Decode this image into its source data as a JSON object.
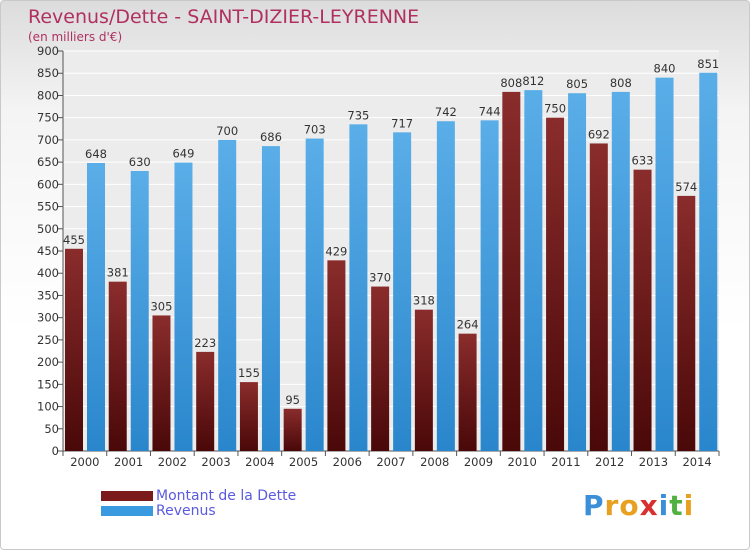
{
  "header": {
    "title": "Revenus/Dette - SAINT-DIZIER-LEYRENNE",
    "subtitle": "(en milliers d'€)"
  },
  "legend": {
    "items": [
      {
        "label": "Montant de la Dette",
        "color": "#7a1a1a"
      },
      {
        "label": "Revenus",
        "color": "#3a9ae0"
      }
    ]
  },
  "logo": {
    "letters": [
      "P",
      "r",
      "o",
      "x",
      "i",
      "t",
      "i"
    ],
    "colors": [
      "#3a8fd8",
      "#e8a020",
      "#e8a020",
      "#d83030",
      "#3a8fd8",
      "#50b040",
      "#e8a020"
    ]
  },
  "chart_data": {
    "type": "bar",
    "title": "Revenus/Dette - SAINT-DIZIER-LEYRENNE",
    "subtitle": "(en milliers d'€)",
    "categories": [
      "2000",
      "2001",
      "2002",
      "2003",
      "2004",
      "2005",
      "2006",
      "2007",
      "2008",
      "2009",
      "2010",
      "2011",
      "2012",
      "2013",
      "2014"
    ],
    "series": [
      {
        "name": "Montant de la Dette",
        "color": "#7a1a1a",
        "values": [
          455,
          381,
          305,
          223,
          155,
          95,
          429,
          370,
          318,
          264,
          808,
          750,
          692,
          633,
          574
        ]
      },
      {
        "name": "Revenus",
        "color": "#3a9ae0",
        "values": [
          648,
          630,
          649,
          700,
          686,
          703,
          735,
          717,
          742,
          744,
          812,
          805,
          808,
          840,
          851
        ]
      }
    ],
    "ylim": [
      0,
      900
    ],
    "yticks": [
      "0",
      "50",
      "100",
      "150",
      "200",
      "250",
      "300",
      "350",
      "400",
      "450",
      "500",
      "550",
      "600",
      "650",
      "700",
      "750",
      "800",
      "850",
      "900"
    ],
    "grid": true,
    "legend_position": "bottom-left"
  }
}
